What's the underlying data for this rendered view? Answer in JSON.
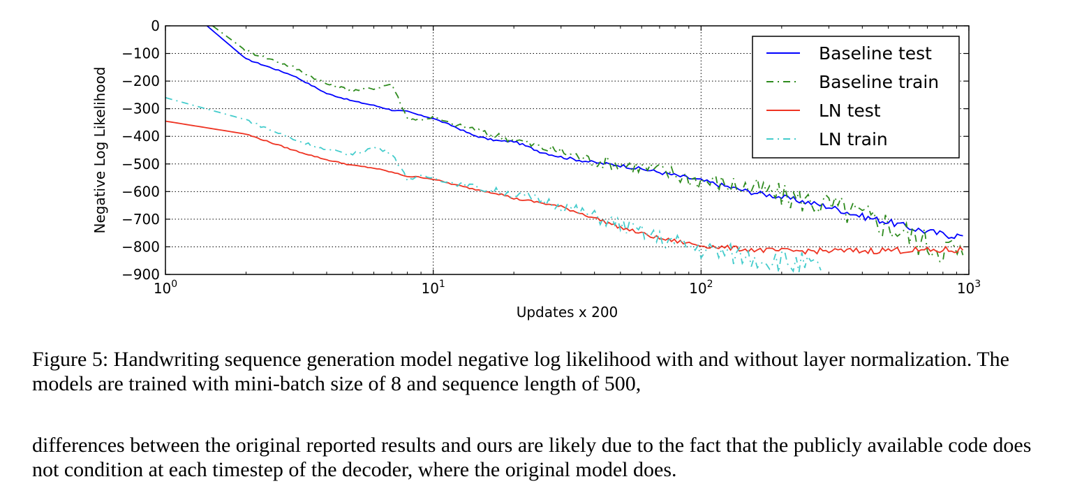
{
  "chart_data": {
    "type": "line",
    "title": "",
    "xlabel": "Updates x 200",
    "ylabel": "Negative Log Likelihood",
    "xscale": "log",
    "xlim": [
      1,
      1000
    ],
    "ylim": [
      -900,
      0
    ],
    "grid": true,
    "legend_position": "top-right",
    "x_ticks": [
      {
        "value": 1,
        "base": "10",
        "exp": "0"
      },
      {
        "value": 10,
        "base": "10",
        "exp": "1"
      },
      {
        "value": 100,
        "base": "10",
        "exp": "2"
      },
      {
        "value": 1000,
        "base": "10",
        "exp": "3"
      }
    ],
    "y_ticks": [
      {
        "value": 0,
        "label": "0"
      },
      {
        "value": -100,
        "label": "−100"
      },
      {
        "value": -200,
        "label": "−200"
      },
      {
        "value": -300,
        "label": "−300"
      },
      {
        "value": -400,
        "label": "−400"
      },
      {
        "value": -500,
        "label": "−500"
      },
      {
        "value": -600,
        "label": "−600"
      },
      {
        "value": -700,
        "label": "−700"
      },
      {
        "value": -800,
        "label": "−800"
      },
      {
        "value": -900,
        "label": "−900"
      }
    ],
    "series": [
      {
        "name": "Baseline test",
        "color": "#0000ff",
        "style": "solid",
        "x": [
          1.43,
          2,
          3,
          4,
          5,
          6,
          7,
          8,
          9,
          10,
          12,
          14,
          16,
          18,
          20,
          25,
          30,
          40,
          50,
          70,
          100,
          150,
          200,
          300,
          400,
          500,
          600,
          700,
          800,
          950
        ],
        "y": [
          0,
          -120,
          -180,
          -245,
          -272,
          -288,
          -305,
          -310,
          -325,
          -335,
          -365,
          -395,
          -410,
          -418,
          -418,
          -455,
          -475,
          -495,
          -505,
          -530,
          -560,
          -600,
          -620,
          -655,
          -690,
          -710,
          -730,
          -745,
          -755,
          -760
        ]
      },
      {
        "name": "Baseline train",
        "color": "#2e8b1e",
        "style": "dashdot",
        "x": [
          1.5,
          2,
          3,
          4,
          5,
          6,
          7,
          8,
          9,
          10,
          12,
          14,
          16,
          18,
          20,
          25,
          30,
          40,
          50,
          70,
          100,
          150,
          200,
          300,
          400,
          500,
          600,
          700,
          800,
          950
        ],
        "y": [
          0,
          -90,
          -150,
          -210,
          -235,
          -225,
          -210,
          -335,
          -340,
          -330,
          -360,
          -370,
          -395,
          -400,
          -410,
          -440,
          -455,
          -490,
          -500,
          -525,
          -560,
          -585,
          -615,
          -650,
          -690,
          -720,
          -760,
          -790,
          -800,
          -830
        ]
      },
      {
        "name": "LN test",
        "color": "#ee3322",
        "style": "solid",
        "x": [
          1,
          2,
          3,
          4,
          5,
          6,
          7,
          8,
          9,
          10,
          12,
          14,
          16,
          18,
          20,
          25,
          30,
          40,
          50,
          70,
          100,
          150,
          200,
          300,
          400,
          500,
          600,
          700,
          800,
          950
        ],
        "y": [
          -345,
          -392,
          -450,
          -485,
          -505,
          -515,
          -530,
          -545,
          -548,
          -555,
          -575,
          -590,
          -600,
          -610,
          -625,
          -640,
          -655,
          -695,
          -730,
          -770,
          -795,
          -810,
          -815,
          -815,
          -815,
          -812,
          -812,
          -815,
          -812,
          -812
        ]
      },
      {
        "name": "LN train",
        "color": "#44cccc",
        "style": "dashdot",
        "x": [
          1,
          2,
          3,
          4,
          5,
          6,
          7,
          8,
          9,
          10,
          12,
          14,
          16,
          18,
          20,
          25,
          30,
          40,
          50,
          70,
          100,
          150,
          200,
          250,
          280
        ],
        "y": [
          -260,
          -340,
          -410,
          -450,
          -465,
          -440,
          -460,
          -555,
          -545,
          -550,
          -570,
          -580,
          -595,
          -600,
          -610,
          -630,
          -650,
          -690,
          -720,
          -770,
          -810,
          -835,
          -850,
          -870,
          -885
        ]
      }
    ]
  },
  "caption": {
    "paragraph1": "Figure 5: Handwriting sequence generation model negative log likelihood with and without layer normalization. The models are trained with mini-batch size of 8 and sequence length of 500,",
    "paragraph2": "differences between the original reported results and ours are likely due to the fact that the publicly available code does not condition at each timestep of the decoder, where the original model does."
  }
}
